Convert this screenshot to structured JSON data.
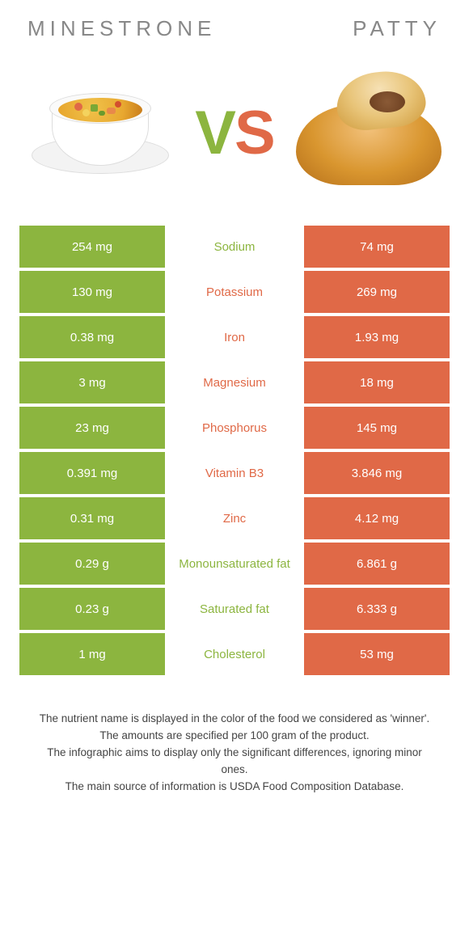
{
  "colors": {
    "green": "#8cb53f",
    "orange": "#e06947",
    "text_muted": "#888888"
  },
  "titles": {
    "left": "Minestrone",
    "right": "Patty"
  },
  "vs": {
    "v": "V",
    "s": "S"
  },
  "rows": [
    {
      "left": "254 mg",
      "label": "Sodium",
      "right": "74 mg",
      "winner": "left"
    },
    {
      "left": "130 mg",
      "label": "Potassium",
      "right": "269 mg",
      "winner": "right"
    },
    {
      "left": "0.38 mg",
      "label": "Iron",
      "right": "1.93 mg",
      "winner": "right"
    },
    {
      "left": "3 mg",
      "label": "Magnesium",
      "right": "18 mg",
      "winner": "right"
    },
    {
      "left": "23 mg",
      "label": "Phosphorus",
      "right": "145 mg",
      "winner": "right"
    },
    {
      "left": "0.391 mg",
      "label": "Vitamin B3",
      "right": "3.846 mg",
      "winner": "right"
    },
    {
      "left": "0.31 mg",
      "label": "Zinc",
      "right": "4.12 mg",
      "winner": "right"
    },
    {
      "left": "0.29 g",
      "label": "Monounsaturated fat",
      "right": "6.861 g",
      "winner": "left"
    },
    {
      "left": "0.23 g",
      "label": "Saturated fat",
      "right": "6.333 g",
      "winner": "left"
    },
    {
      "left": "1 mg",
      "label": "Cholesterol",
      "right": "53 mg",
      "winner": "left"
    }
  ],
  "notes": [
    "The nutrient name is displayed in the color of the food we considered as 'winner'.",
    "The amounts are specified per 100 gram of the product.",
    "The infographic aims to display only the significant differences, ignoring minor ones.",
    "The main source of information is USDA Food Composition Database."
  ]
}
